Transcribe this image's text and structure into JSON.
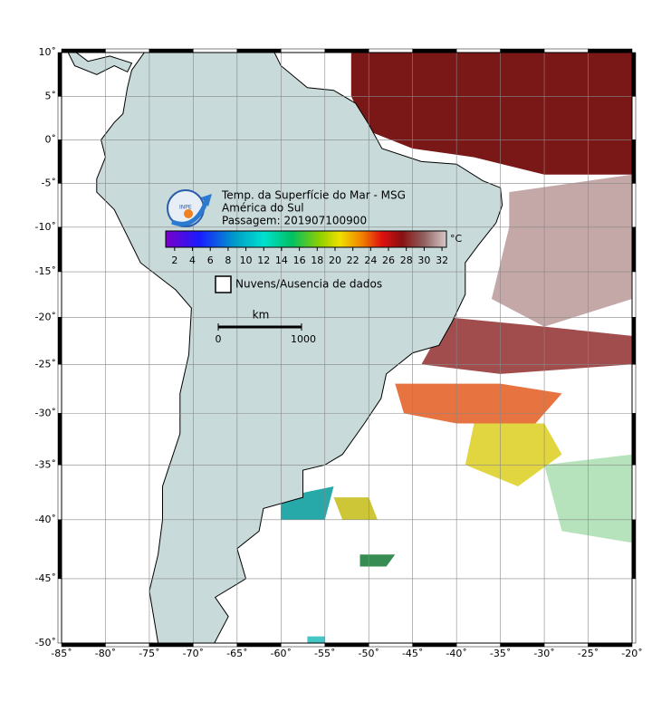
{
  "map": {
    "xlim": [
      -85,
      -20
    ],
    "ylim": [
      -50,
      10
    ],
    "xticks": [
      {
        "value": -85,
        "label": "-85˚"
      },
      {
        "value": -80,
        "label": "-80˚"
      },
      {
        "value": -75,
        "label": "-75˚"
      },
      {
        "value": -70,
        "label": "-70˚"
      },
      {
        "value": -65,
        "label": "-65˚"
      },
      {
        "value": -60,
        "label": "-60˚"
      },
      {
        "value": -55,
        "label": "-55˚"
      },
      {
        "value": -50,
        "label": "-50˚"
      },
      {
        "value": -45,
        "label": "-45˚"
      },
      {
        "value": -40,
        "label": "-40˚"
      },
      {
        "value": -35,
        "label": "-35˚"
      },
      {
        "value": -30,
        "label": "-30˚"
      },
      {
        "value": -25,
        "label": "-25˚"
      },
      {
        "value": -20,
        "label": "-20˚"
      }
    ],
    "yticks": [
      {
        "value": 10,
        "label": "10˚"
      },
      {
        "value": 5,
        "label": "5˚"
      },
      {
        "value": 0,
        "label": "0˚"
      },
      {
        "value": -5,
        "label": "-5˚"
      },
      {
        "value": -10,
        "label": "-10˚"
      },
      {
        "value": -15,
        "label": "-15˚"
      },
      {
        "value": -20,
        "label": "-20˚"
      },
      {
        "value": -25,
        "label": "-25˚"
      },
      {
        "value": -30,
        "label": "-30˚"
      },
      {
        "value": -35,
        "label": "-35˚"
      },
      {
        "value": -40,
        "label": "-40˚"
      },
      {
        "value": -45,
        "label": "-45˚"
      },
      {
        "value": -50,
        "label": "-50˚"
      }
    ],
    "grid": true
  },
  "title": [
    "Temp. da Superfície do Mar - MSG",
    "América do Sul",
    "Passagem: 201907100900"
  ],
  "logo": "INPE",
  "colorbar": {
    "clim": [
      1,
      32.5
    ],
    "ticks": [
      2,
      4,
      6,
      8,
      10,
      12,
      14,
      16,
      18,
      20,
      22,
      24,
      26,
      28,
      30,
      32
    ],
    "unit": "°C"
  },
  "legend": "Nuvens/Ausencia de dados",
  "scale": {
    "unit": "km",
    "labels": [
      "0",
      "1000"
    ]
  }
}
